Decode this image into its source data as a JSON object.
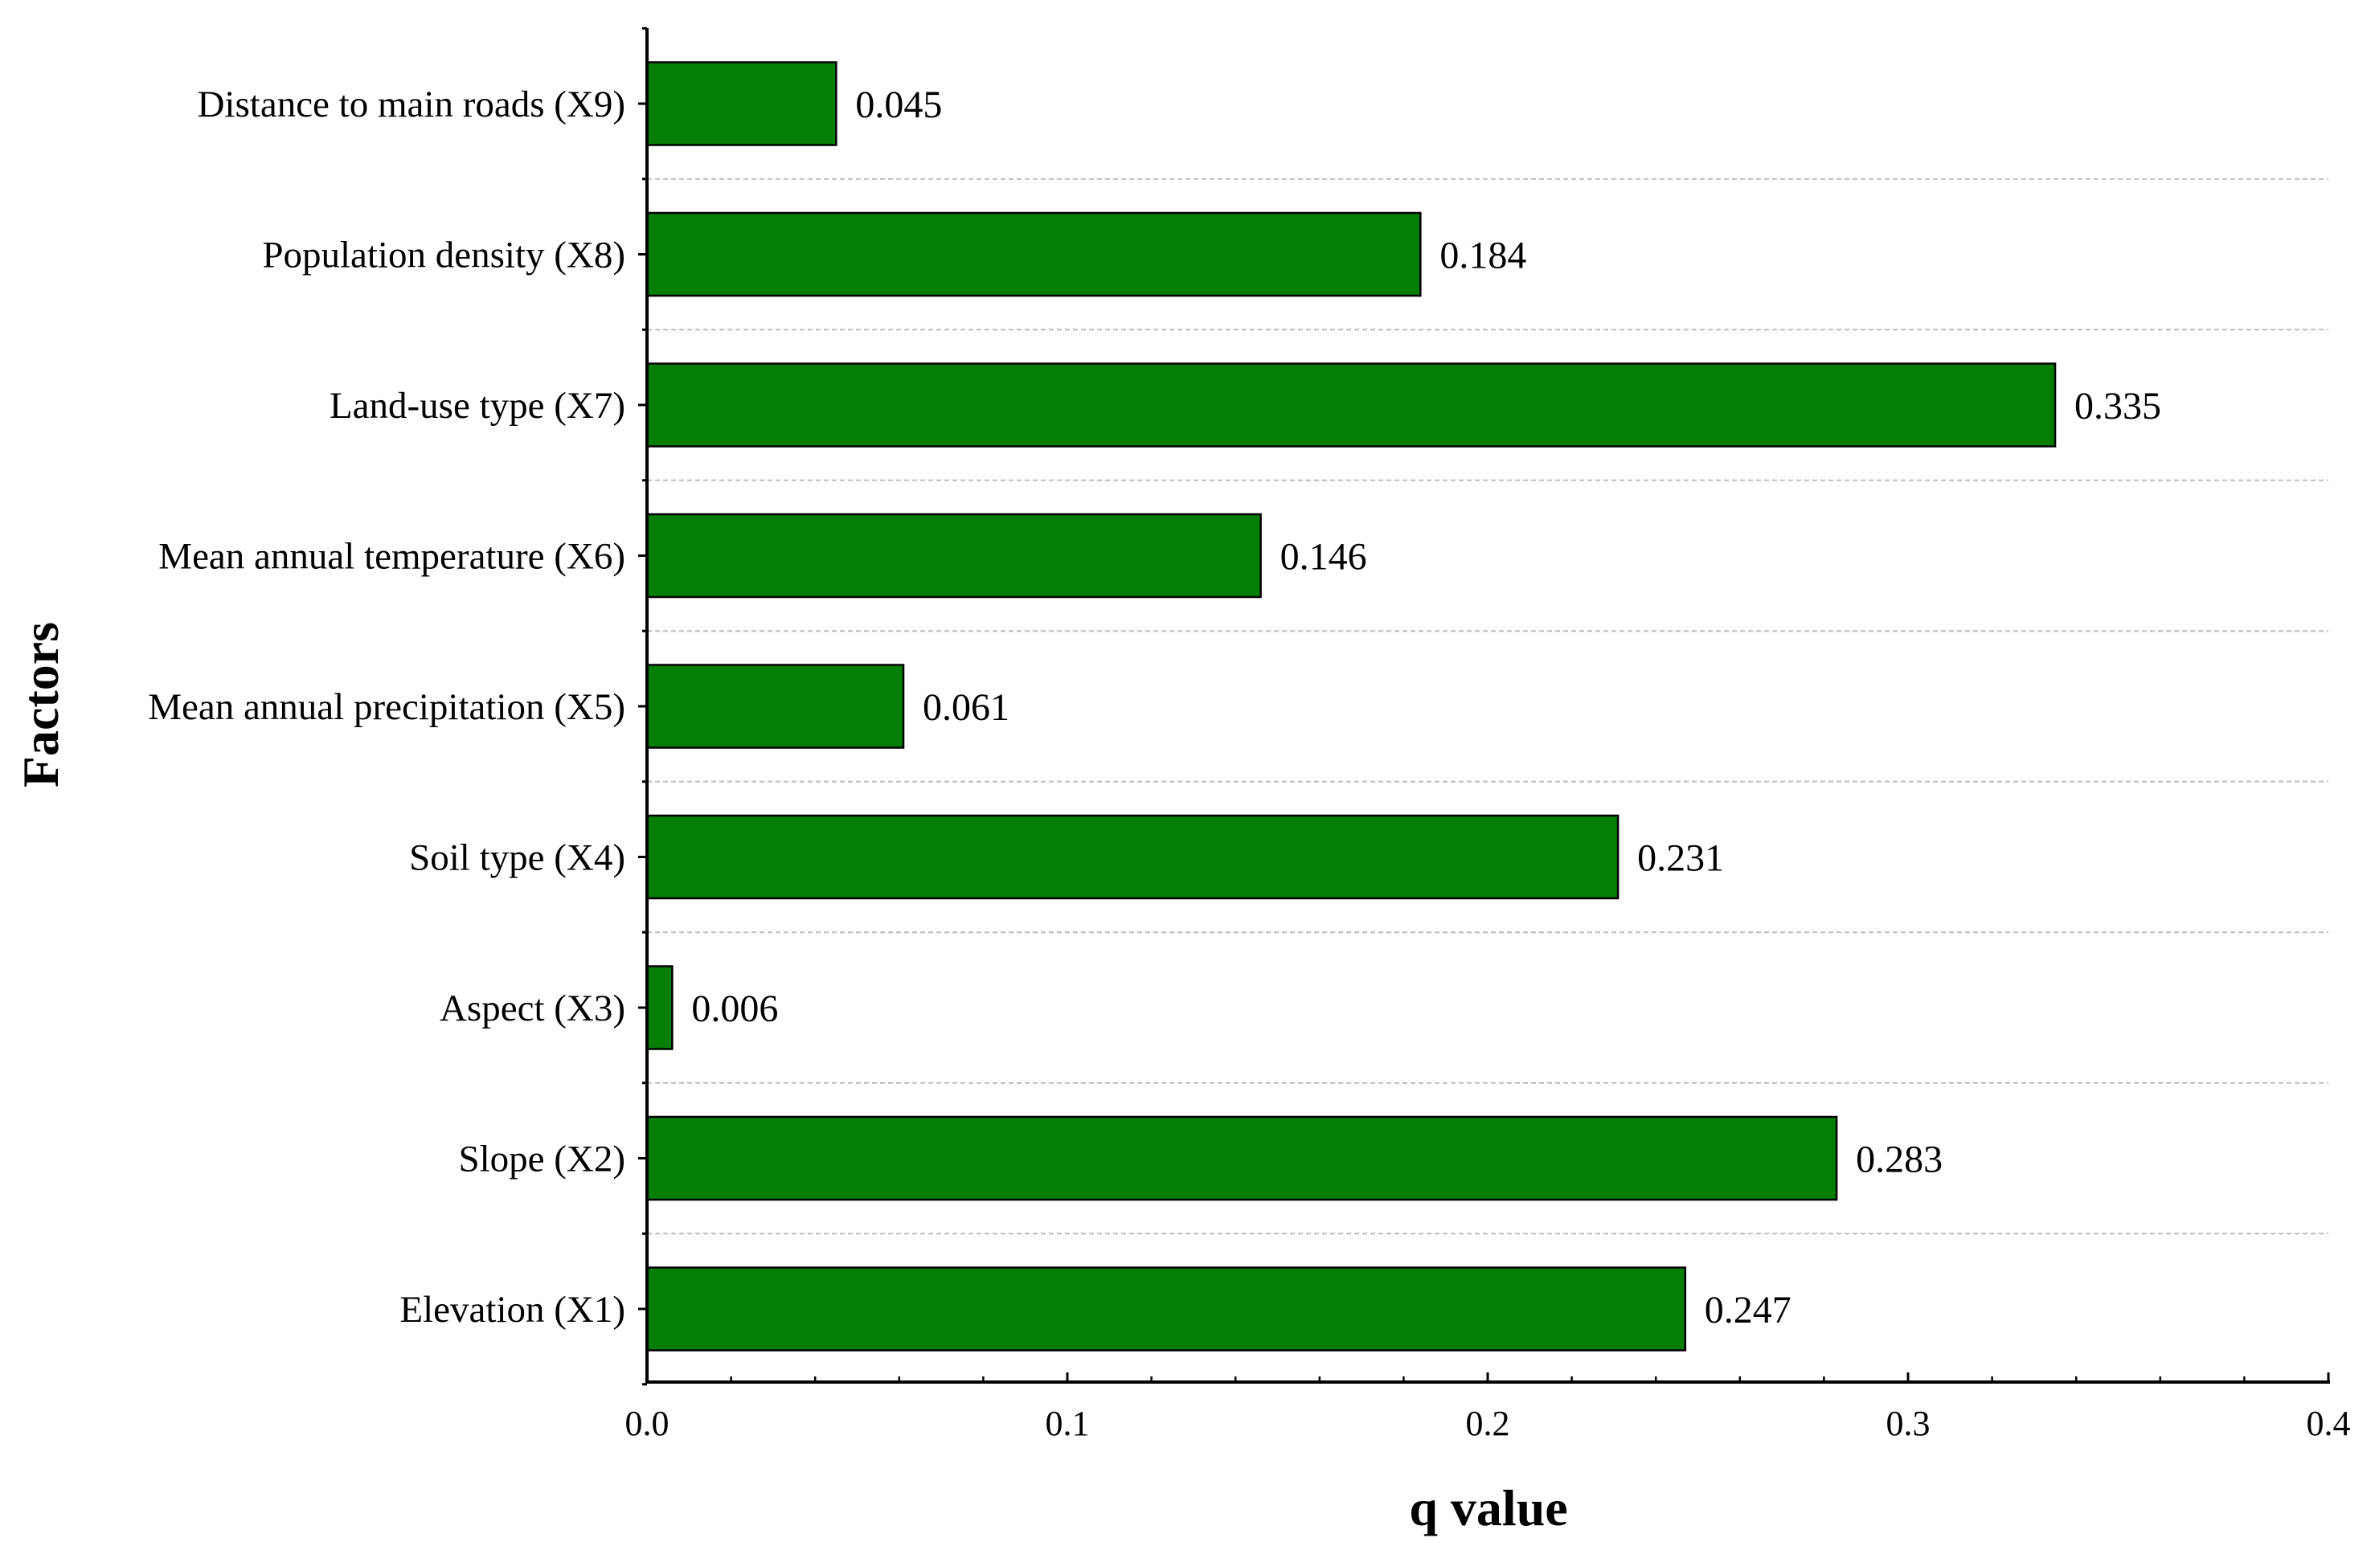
{
  "chart_data": {
    "type": "bar",
    "orientation": "horizontal",
    "categories": [
      "Elevation (X1)",
      "Slope (X2)",
      "Aspect (X3)",
      "Soil type (X4)",
      "Mean annual precipitation (X5)",
      "Mean annual temperature (X6)",
      "Land-use type (X7)",
      "Population density (X8)",
      "Distance to main roads (X9)"
    ],
    "values": [
      0.247,
      0.283,
      0.006,
      0.231,
      0.061,
      0.146,
      0.335,
      0.184,
      0.045
    ],
    "data_labels": [
      "0.247",
      "0.283",
      "0.006",
      "0.231",
      "0.061",
      "0.146",
      "0.335",
      "0.184",
      "0.045"
    ],
    "xlabel": "q value",
    "ylabel": "Factors",
    "xlim": [
      0,
      0.4
    ],
    "x_ticks": [
      0.0,
      0.1,
      0.2,
      0.3,
      0.4
    ],
    "x_tick_labels": [
      "0.0",
      "0.1",
      "0.2",
      "0.3",
      "0.4"
    ],
    "grid": "horizontal dashed separators",
    "legend": "none",
    "colors": {
      "bar_fill": "#057E05",
      "bar_stroke": "#000000",
      "grid": "#BDBDBD",
      "axis": "#000000"
    }
  }
}
